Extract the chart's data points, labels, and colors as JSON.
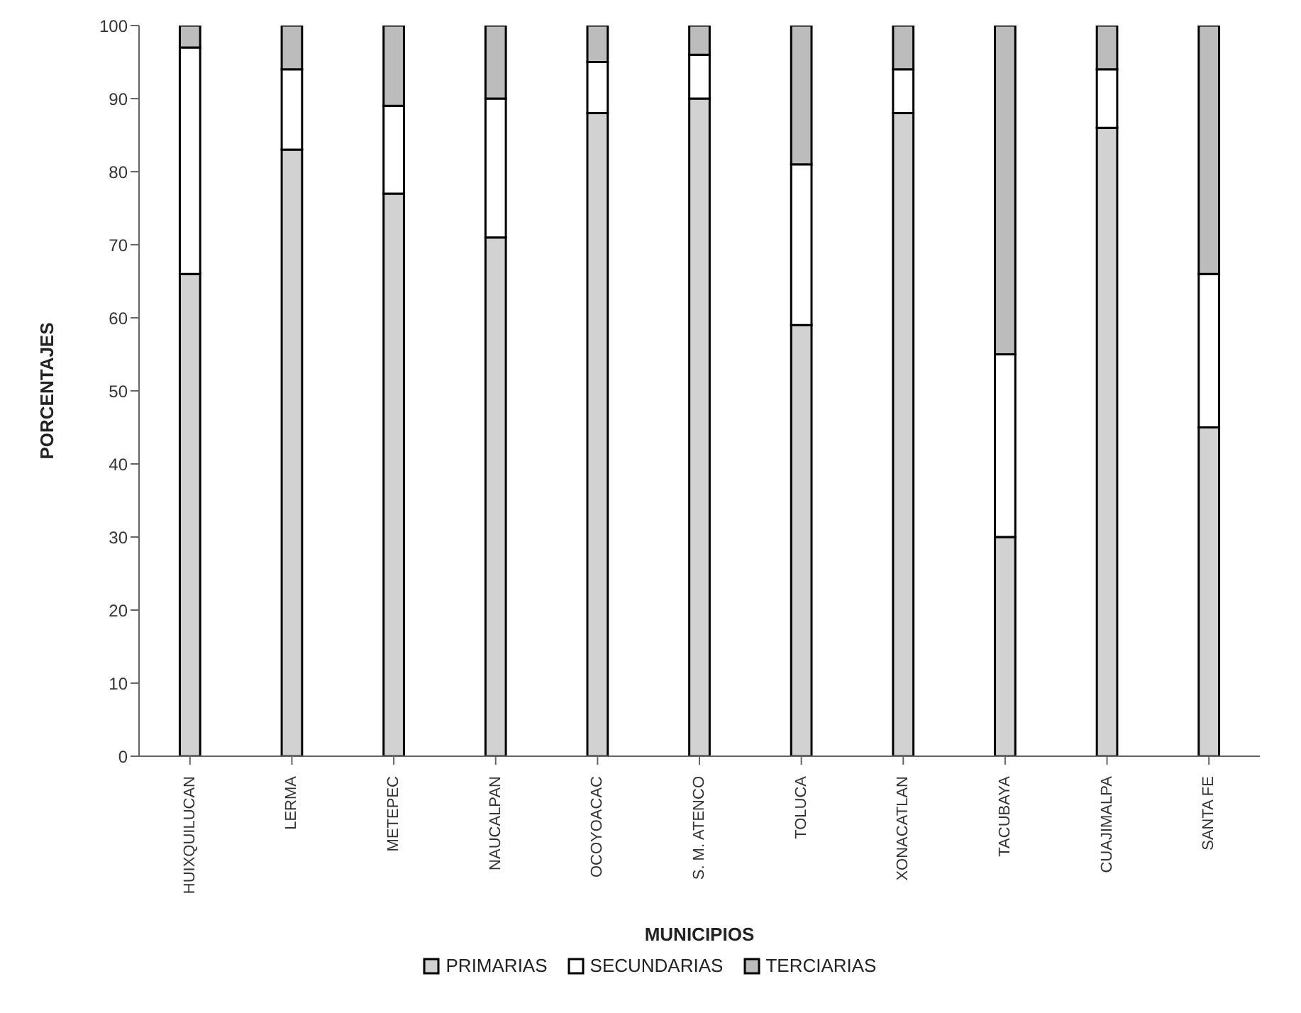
{
  "chart_data": {
    "type": "bar",
    "stacked": true,
    "xlabel": "MUNICIPIOS",
    "ylabel": "PORCENTAJES",
    "categories": [
      "HUIXQUILUCAN",
      "LERMA",
      "METEPEC",
      "NAUCALPAN",
      "OCOYOACAC",
      "S. M. ATENCO",
      "TOLUCA",
      "XONACATLAN",
      "TACUBAYA",
      "CUAJIMALPA",
      "SANTA FE"
    ],
    "series": [
      {
        "name": "PRIMARIAS",
        "color": "#d2d2d2",
        "values": [
          66,
          83,
          77,
          71,
          88,
          90,
          59,
          88,
          30,
          86,
          45
        ]
      },
      {
        "name": "SECUNDARIAS",
        "color": "#ffffff",
        "values": [
          31,
          11,
          12,
          19,
          7,
          6,
          22,
          6,
          25,
          8,
          21
        ]
      },
      {
        "name": "TERCIARIAS",
        "color": "#bcbcbc",
        "values": [
          3,
          6,
          11,
          10,
          5,
          4,
          19,
          6,
          45,
          6,
          34
        ]
      }
    ],
    "ylim": [
      0,
      100
    ],
    "yticks": [
      0,
      10,
      20,
      30,
      40,
      50,
      60,
      70,
      80,
      90,
      100
    ],
    "grid": false,
    "legend": "bottom"
  }
}
